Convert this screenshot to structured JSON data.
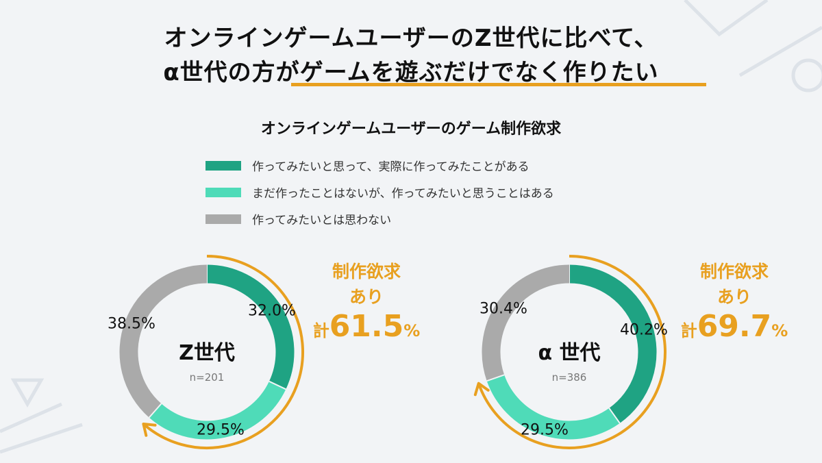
{
  "title": {
    "line1": "オンラインゲームユーザーのZ世代に比べて、",
    "line2a": "α世代の方が",
    "line2b": "ゲームを遊ぶだけでなく作りたい"
  },
  "colors": {
    "dark_green": "#1fa383",
    "light_green": "#4fdbb8",
    "gray": "#aaaaaa",
    "accent": "#e8a020"
  },
  "chart_data": [
    {
      "type": "pie",
      "title": "オンラインゲームユーザーのゲーム制作欲求",
      "legend": [
        "作ってみたいと思って、実際に作ってみたことがある",
        "まだ作ったことはないが、作ってみたいと思うことはある",
        "作ってみたいとは思わない"
      ],
      "legend_placement": "top",
      "name": "Z世代",
      "n_label": "n=201",
      "values": [
        32.0,
        29.5,
        38.5
      ],
      "value_labels": [
        "32.0%",
        "29.5%",
        "38.5%"
      ],
      "callout": {
        "line1": "制作欲求",
        "line2": "あり",
        "prefix": "計",
        "total": "61.5",
        "unit": "%",
        "value": 61.5
      }
    },
    {
      "type": "pie",
      "name": "α 世代",
      "n_label": "n=386",
      "values": [
        40.2,
        29.5,
        30.4
      ],
      "value_labels": [
        "40.2%",
        "29.5%",
        "30.4%"
      ],
      "callout": {
        "line1": "制作欲求",
        "line2": "あり",
        "prefix": "計",
        "total": "69.7",
        "unit": "%",
        "value": 69.7
      }
    }
  ]
}
